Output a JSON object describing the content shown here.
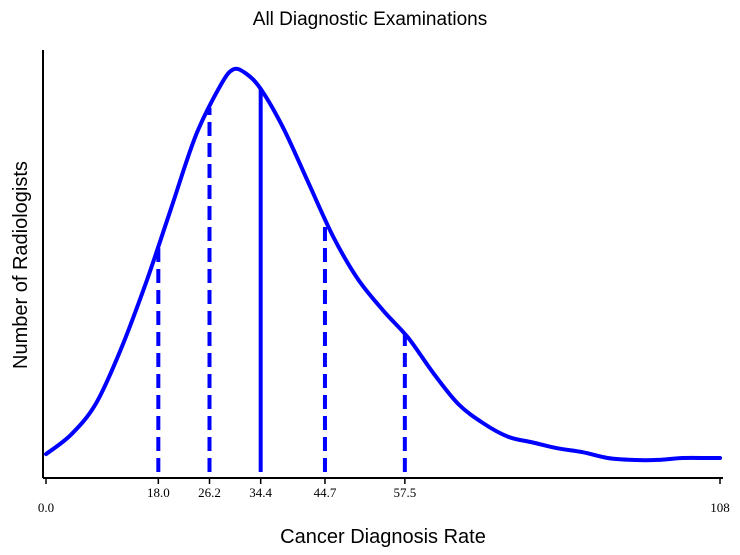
{
  "chart_data": {
    "type": "line",
    "title": "All Diagnostic Examinations",
    "xlabel": "Cancer Diagnosis Rate",
    "ylabel": "Number of Radiologists",
    "xlim": [
      0,
      108
    ],
    "ylim": [
      0,
      1.05
    ],
    "grid": false,
    "line_color": "#0000ff",
    "series": [
      {
        "x": [
          0,
          4,
          8,
          12,
          16,
          20,
          24,
          28,
          30,
          32,
          34.4,
          38,
          42,
          46,
          50,
          54,
          58,
          62,
          66,
          70,
          74,
          78,
          82,
          86,
          90,
          94,
          98,
          102,
          106,
          108
        ],
        "y": [
          0.01,
          0.06,
          0.14,
          0.28,
          0.45,
          0.64,
          0.83,
          0.96,
          1.0,
          0.99,
          0.95,
          0.85,
          0.71,
          0.57,
          0.46,
          0.38,
          0.31,
          0.22,
          0.14,
          0.09,
          0.055,
          0.04,
          0.025,
          0.015,
          0.0,
          -0.005,
          -0.005,
          0.0,
          0.0,
          0.0
        ]
      }
    ],
    "reference_lines": [
      {
        "x": 18.0,
        "label": "18.0",
        "style": "dashed"
      },
      {
        "x": 26.2,
        "label": "26.2",
        "style": "dashed"
      },
      {
        "x": 34.4,
        "label": "34.4",
        "style": "solid"
      },
      {
        "x": 44.7,
        "label": "44.7",
        "style": "dashed"
      },
      {
        "x": 57.5,
        "label": "57.5",
        "style": "dashed"
      }
    ],
    "end_ticks": [
      {
        "x": 0,
        "label": "0.0"
      },
      {
        "x": 108,
        "label": "108"
      }
    ]
  }
}
